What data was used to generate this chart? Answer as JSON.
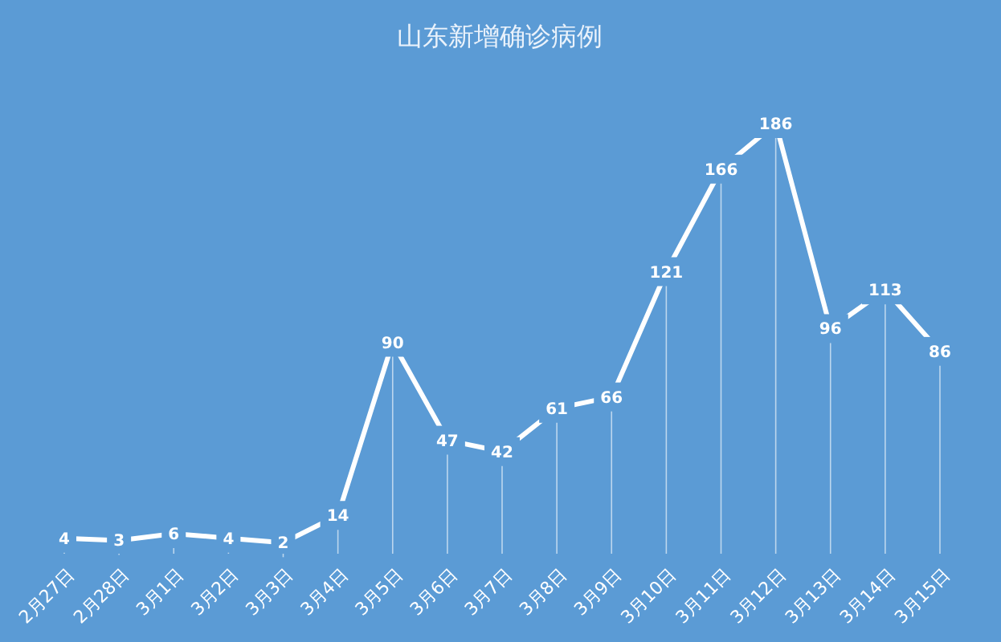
{
  "chart_data": {
    "type": "line",
    "title": "山东新增确诊病例",
    "categories": [
      "2月27日",
      "2月28日",
      "3月1日",
      "3月2日",
      "3月3日",
      "3月4日",
      "3月5日",
      "3月6日",
      "3月7日",
      "3月8日",
      "3月9日",
      "3月10日",
      "3月11日",
      "3月12日",
      "3月13日",
      "3月14日",
      "3月15日"
    ],
    "series": [
      {
        "color": "#ffffff",
        "values": [
          4,
          3,
          6,
          4,
          2,
          14,
          90,
          47,
          42,
          61,
          66,
          121,
          166,
          186,
          96,
          113,
          86
        ]
      }
    ],
    "data_labels": true,
    "line_style": "solid",
    "grid": "x"
  }
}
